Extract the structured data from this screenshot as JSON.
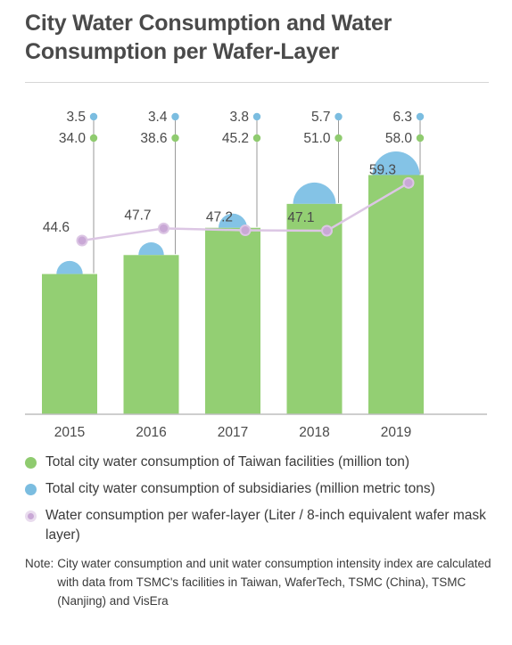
{
  "title": "City Water Consumption and Water Consumption per Wafer-Layer",
  "colors": {
    "taiwan": "#93cf73",
    "subsidiaries": "#84c3e6",
    "wafer_line": "#dcc6e4",
    "wafer_marker": "#c9a8d6",
    "dot_green": "#8fcb6f",
    "dot_blue": "#7bbde0",
    "axis": "#bdbdbd",
    "leader": "#9a9a9a",
    "label": "#4a4a4a"
  },
  "legend": {
    "taiwan": "Total city water consumption of Taiwan facilities (million ton)",
    "subsidiaries": "Total city water consumption of subsidiaries (million metric tons)",
    "wafer": "Water consumption per wafer-layer (Liter / 8-inch equivalent wafer mask layer)"
  },
  "note": {
    "head": "Note:",
    "body": "City water consumption and unit water consumption intensity index are calculated with data from TSMC's facilities in Taiwan, WaferTech, TSMC (China), TSMC (Nanjing) and VisEra"
  },
  "chart_data": {
    "type": "bar",
    "stacked": true,
    "categories": [
      "2015",
      "2016",
      "2017",
      "2018",
      "2019"
    ],
    "series": [
      {
        "name": "Total city water consumption of Taiwan facilities (million ton)",
        "type": "bar",
        "values": [
          34.0,
          38.6,
          45.2,
          51.0,
          58.0
        ]
      },
      {
        "name": "Total city water consumption of subsidiaries (million metric tons)",
        "type": "bar",
        "values": [
          3.5,
          3.4,
          3.8,
          5.7,
          6.3
        ]
      },
      {
        "name": "Water consumption per wafer-layer (Liter / 8-inch equivalent wafer mask layer)",
        "type": "line",
        "values": [
          44.6,
          47.7,
          47.2,
          47.1,
          59.3
        ]
      }
    ],
    "labels": {
      "taiwan": [
        "34.0",
        "38.6",
        "45.2",
        "51.0",
        "58.0"
      ],
      "subsidiaries": [
        "3.5",
        "3.4",
        "3.8",
        "5.7",
        "6.3"
      ],
      "wafer": [
        "44.6",
        "47.7",
        "47.2",
        "47.1",
        "59.3"
      ]
    },
    "ylim": [
      0,
      70
    ],
    "grid": false,
    "legend_position": "bottom"
  }
}
